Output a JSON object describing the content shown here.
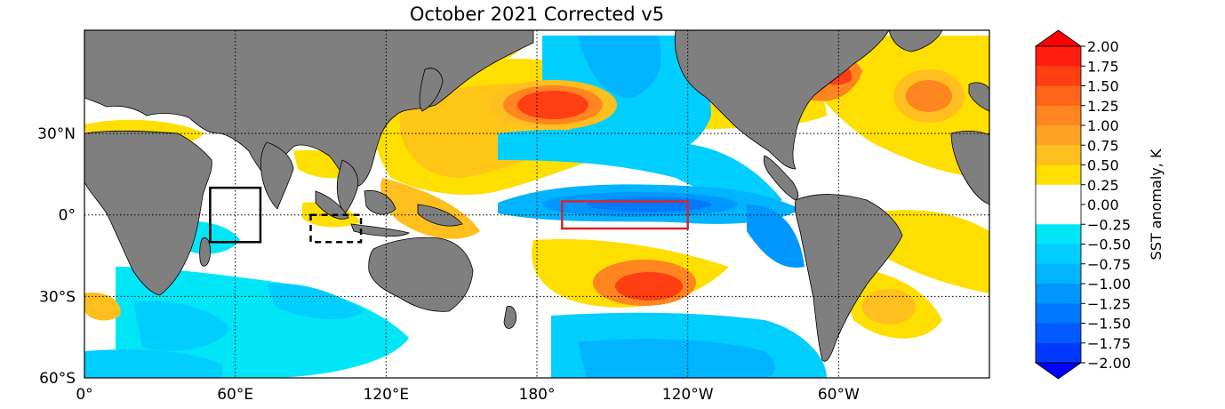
{
  "title": "October 2021 Corrected v5",
  "x_ticks": [
    {
      "lon": 0,
      "label": "0°"
    },
    {
      "lon": 60,
      "label": "60°E"
    },
    {
      "lon": 120,
      "label": "120°E"
    },
    {
      "lon": 180,
      "label": "180°"
    },
    {
      "lon": 240,
      "label": "120°W"
    },
    {
      "lon": 300,
      "label": "60°W"
    }
  ],
  "y_ticks": [
    {
      "lat": 30,
      "label": "30°N"
    },
    {
      "lat": 0,
      "label": "0°"
    },
    {
      "lat": -30,
      "label": "30°S"
    },
    {
      "lat": -60,
      "label": "60°S"
    }
  ],
  "extent": {
    "lon_min": 0,
    "lon_max": 360,
    "lat_min": -60,
    "lat_max": 68
  },
  "colorbar": {
    "label": "SST anomaly, K",
    "levels": [
      "2.00",
      "1.75",
      "1.50",
      "1.25",
      "1.00",
      "0.75",
      "0.50",
      "0.25",
      "0.00",
      "−0.25",
      "−0.50",
      "−0.75",
      "−1.00",
      "−1.25",
      "−1.50",
      "−1.75",
      "−2.00"
    ],
    "colors": [
      "#ff1d0f",
      "#ff3e12",
      "#ff6418",
      "#ff8520",
      "#ffa226",
      "#ffbf1e",
      "#ffdf00",
      "#ffffff",
      "#ffffff",
      "#00e6f7",
      "#00ceff",
      "#00b4ff",
      "#0096ff",
      "#0078ff",
      "#005aff",
      "#0038ff"
    ],
    "extend_top": "#ff0000",
    "extend_bottom": "#0000ff"
  },
  "boxes": [
    {
      "name": "west-indian-box",
      "lon": [
        50,
        70
      ],
      "lat": [
        -10,
        10
      ],
      "color": "#000000",
      "style": "solid"
    },
    {
      "name": "east-indian-box",
      "lon": [
        90,
        110
      ],
      "lat": [
        -10,
        0
      ],
      "color": "#000000",
      "style": "dashed"
    },
    {
      "name": "nino34-box",
      "lon": [
        190,
        240
      ],
      "lat": [
        -5,
        5
      ],
      "color": "#d62728",
      "style": "solid"
    }
  ]
}
